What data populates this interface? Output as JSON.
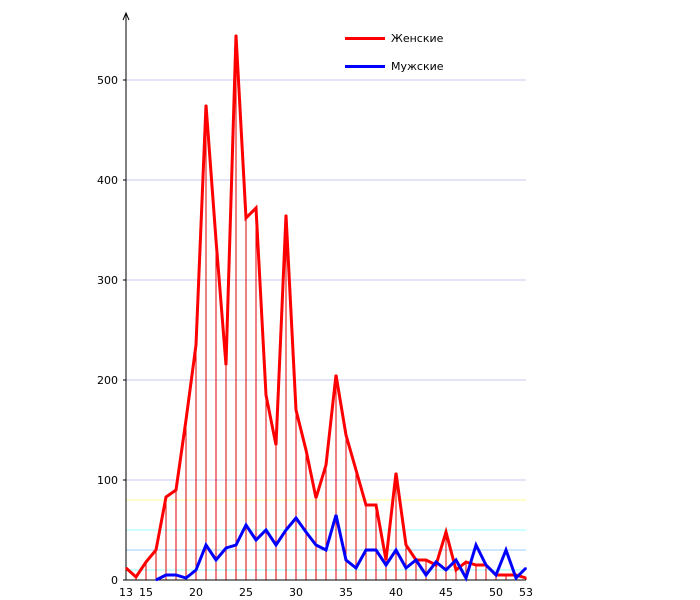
{
  "chart_data": {
    "type": "line",
    "x": [
      13,
      14,
      15,
      16,
      17,
      18,
      19,
      20,
      21,
      22,
      23,
      24,
      25,
      26,
      27,
      28,
      29,
      30,
      31,
      32,
      33,
      34,
      35,
      36,
      37,
      38,
      39,
      40,
      41,
      42,
      43,
      44,
      45,
      46,
      47,
      48,
      49,
      50,
      51,
      52,
      53
    ],
    "series": [
      {
        "name": "Женские",
        "color": "#ff0000",
        "values": [
          12,
          3,
          18,
          30,
          83,
          90,
          160,
          235,
          475,
          340,
          215,
          545,
          362,
          372,
          185,
          135,
          365,
          170,
          130,
          82,
          115,
          205,
          145,
          110,
          75,
          75,
          20,
          107,
          35,
          20,
          20,
          15,
          48,
          10,
          18,
          15,
          15,
          5,
          5,
          5,
          2
        ]
      },
      {
        "name": "Мужские",
        "color": "#0000ff",
        "values": [
          null,
          null,
          null,
          0,
          5,
          5,
          2,
          10,
          35,
          20,
          32,
          35,
          55,
          40,
          50,
          35,
          50,
          62,
          48,
          35,
          30,
          65,
          20,
          12,
          30,
          30,
          15,
          30,
          12,
          20,
          5,
          18,
          10,
          20,
          2,
          35,
          15,
          5,
          30,
          2,
          12
        ]
      }
    ],
    "x_ticks": [
      13,
      15,
      20,
      25,
      30,
      35,
      40,
      45,
      50,
      53
    ],
    "y_ticks": [
      0,
      100,
      200,
      300,
      400,
      500
    ],
    "xlim": [
      13,
      53
    ],
    "ylim": [
      0,
      550
    ],
    "xlabel": "",
    "ylabel": "",
    "title": ""
  }
}
